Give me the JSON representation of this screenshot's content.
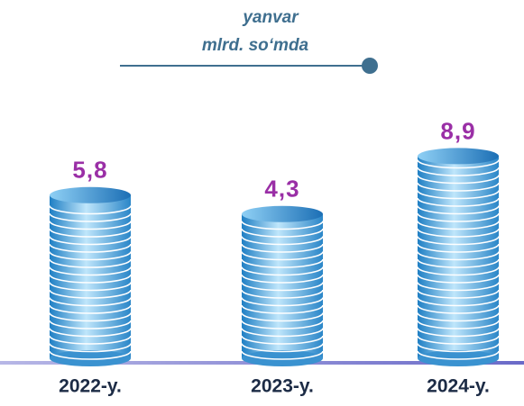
{
  "chart_data": {
    "type": "coin-stack",
    "subtitle": [
      "yanvar",
      "mlrd. so‘mda"
    ],
    "categories": [
      "2022-y.",
      "2023-y.",
      "2024-y."
    ],
    "values": [
      5.8,
      4.3,
      8.9
    ],
    "value_labels": [
      "5,8",
      "4,3",
      "8,9"
    ],
    "color": "#2f8fd0",
    "label_color": "#9a2fa6"
  }
}
